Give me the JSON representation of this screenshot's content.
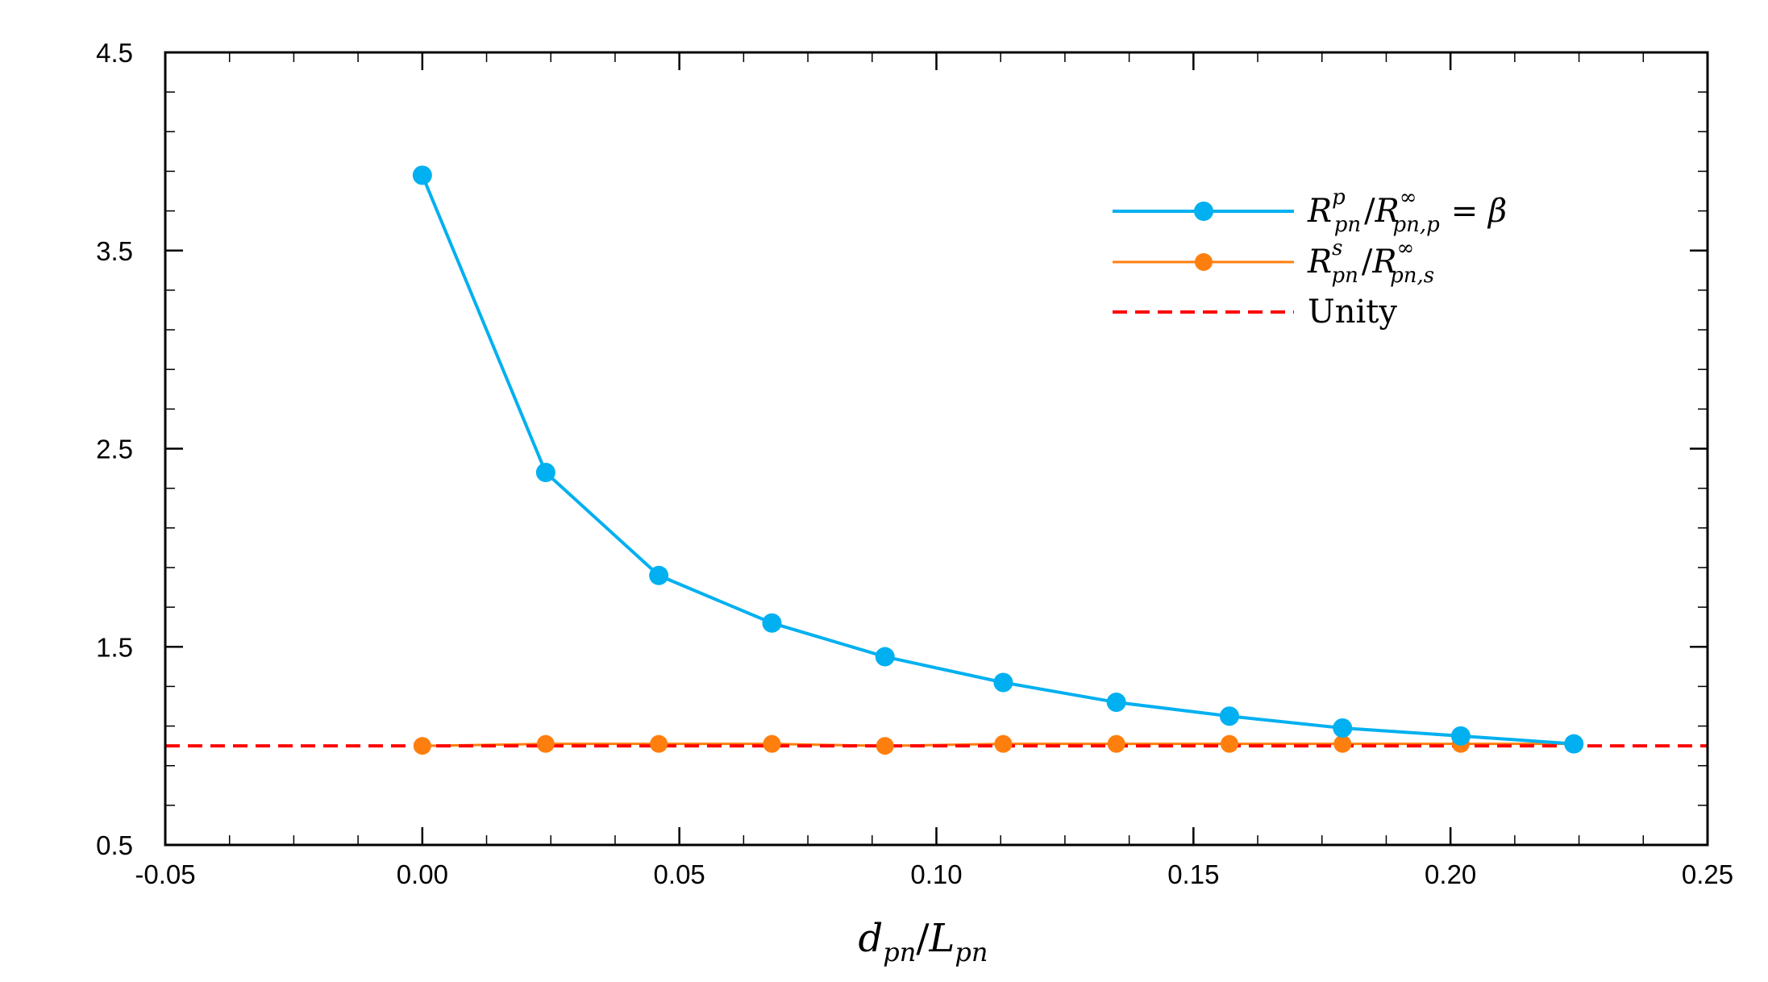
{
  "chart_data": {
    "type": "line",
    "title": "",
    "xlabel": "d_pn/L_pn",
    "xlabel_parts": {
      "a": "d",
      "a_sub": "pn",
      "sep": "/",
      "b": "L",
      "b_sub": "pn"
    },
    "ylabel": "",
    "xlim": [
      -0.05,
      0.25
    ],
    "ylim": [
      0.5,
      4.5
    ],
    "xticks": [
      -0.05,
      0.0,
      0.05,
      0.1,
      0.15,
      0.2,
      0.25
    ],
    "xtick_labels": [
      "-0.05",
      "0.00",
      "0.05",
      "0.10",
      "0.15",
      "0.20",
      "0.25"
    ],
    "yticks": [
      0.5,
      1.5,
      2.5,
      3.5,
      4.5
    ],
    "ytick_labels": [
      "0.5",
      "1.5",
      "2.5",
      "3.5",
      "4.5"
    ],
    "grid": false,
    "legend_position": "top-right",
    "series": [
      {
        "name": "R_pn^p / R_pn,p^∞ = β",
        "label_parts": {
          "main": "R",
          "sup": "p",
          "sub": "pn",
          "sep": "/",
          "main2": "R",
          "sup2": "∞",
          "sub2": "pn,p",
          "tail": "= β"
        },
        "color": "#00B0F0",
        "marker": "circle",
        "x": [
          0.0,
          0.024,
          0.046,
          0.068,
          0.09,
          0.113,
          0.135,
          0.157,
          0.179,
          0.202,
          0.224
        ],
        "y": [
          3.88,
          2.38,
          1.86,
          1.62,
          1.45,
          1.32,
          1.22,
          1.15,
          1.09,
          1.05,
          1.01
        ]
      },
      {
        "name": "R_pn^s / R_pn,s^∞",
        "label_parts": {
          "main": "R",
          "sup": "s",
          "sub": "pn",
          "sep": "/",
          "main2": "R",
          "sup2": "∞",
          "sub2": "pn,s",
          "tail": ""
        },
        "color": "#FF7F0E",
        "marker": "circle",
        "x": [
          0.0,
          0.024,
          0.046,
          0.068,
          0.09,
          0.113,
          0.135,
          0.157,
          0.179,
          0.202,
          0.224
        ],
        "y": [
          1.0,
          1.01,
          1.01,
          1.01,
          1.0,
          1.01,
          1.01,
          1.01,
          1.01,
          1.01,
          1.01
        ]
      },
      {
        "name": "Unity",
        "color": "#FF0000",
        "dashed": true,
        "y_const": 1.0
      }
    ]
  }
}
